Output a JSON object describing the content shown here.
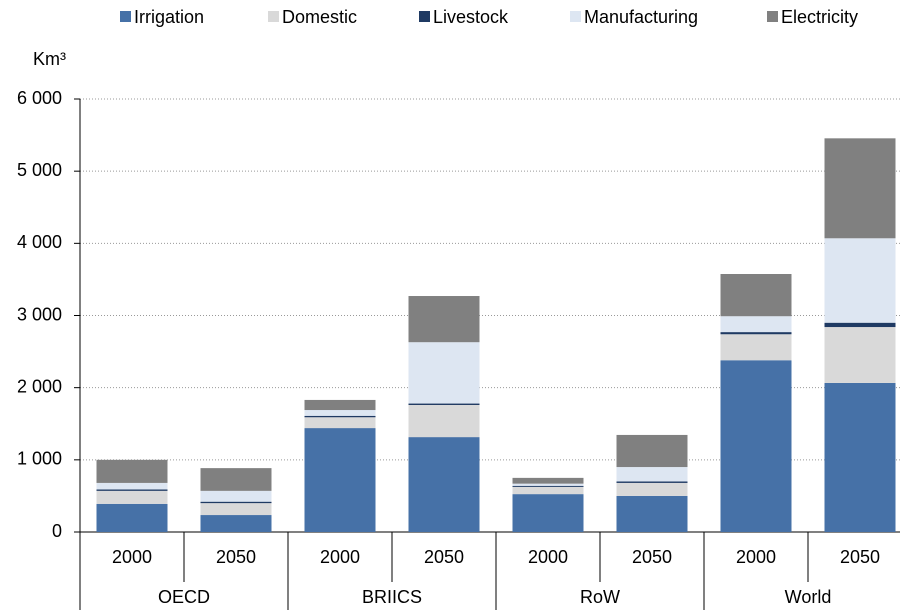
{
  "chart_data": {
    "type": "stacked_bar",
    "y_label": "Km³",
    "categories": [
      "2000",
      "2050",
      "2000",
      "2050",
      "2000",
      "2050",
      "2000",
      "2050"
    ],
    "groups": [
      "OECD",
      "BRIICS",
      "RoW",
      "World"
    ],
    "series": [
      {
        "name": "Irrigation",
        "color": "#4671a7",
        "values": [
          390,
          235,
          1440,
          1315,
          525,
          500,
          2380,
          2065
        ]
      },
      {
        "name": "Domestic",
        "color": "#d9d9d9",
        "values": [
          180,
          165,
          150,
          445,
          100,
          180,
          360,
          775
        ]
      },
      {
        "name": "Livestock",
        "color": "#1f3a63",
        "values": [
          20,
          20,
          20,
          20,
          15,
          20,
          30,
          60
        ]
      },
      {
        "name": "Manufacturing",
        "color": "#dde6f2",
        "values": [
          90,
          150,
          80,
          850,
          30,
          200,
          220,
          1170
        ]
      },
      {
        "name": "Electricity",
        "color": "#808080",
        "values": [
          320,
          315,
          140,
          640,
          80,
          445,
          585,
          1385
        ]
      }
    ],
    "ylim": [
      0,
      6000
    ],
    "yticks": [
      0,
      {
        "value": 1000,
        "label": "1 000"
      },
      {
        "value": 2000,
        "label": "2 000"
      },
      {
        "value": 3000,
        "label": "3 000"
      },
      {
        "value": 4000,
        "label": "4 000"
      },
      {
        "value": 5000,
        "label": "5 000"
      },
      {
        "value": 6000,
        "label": "6 000"
      }
    ],
    "grid": true,
    "legend": "top"
  }
}
